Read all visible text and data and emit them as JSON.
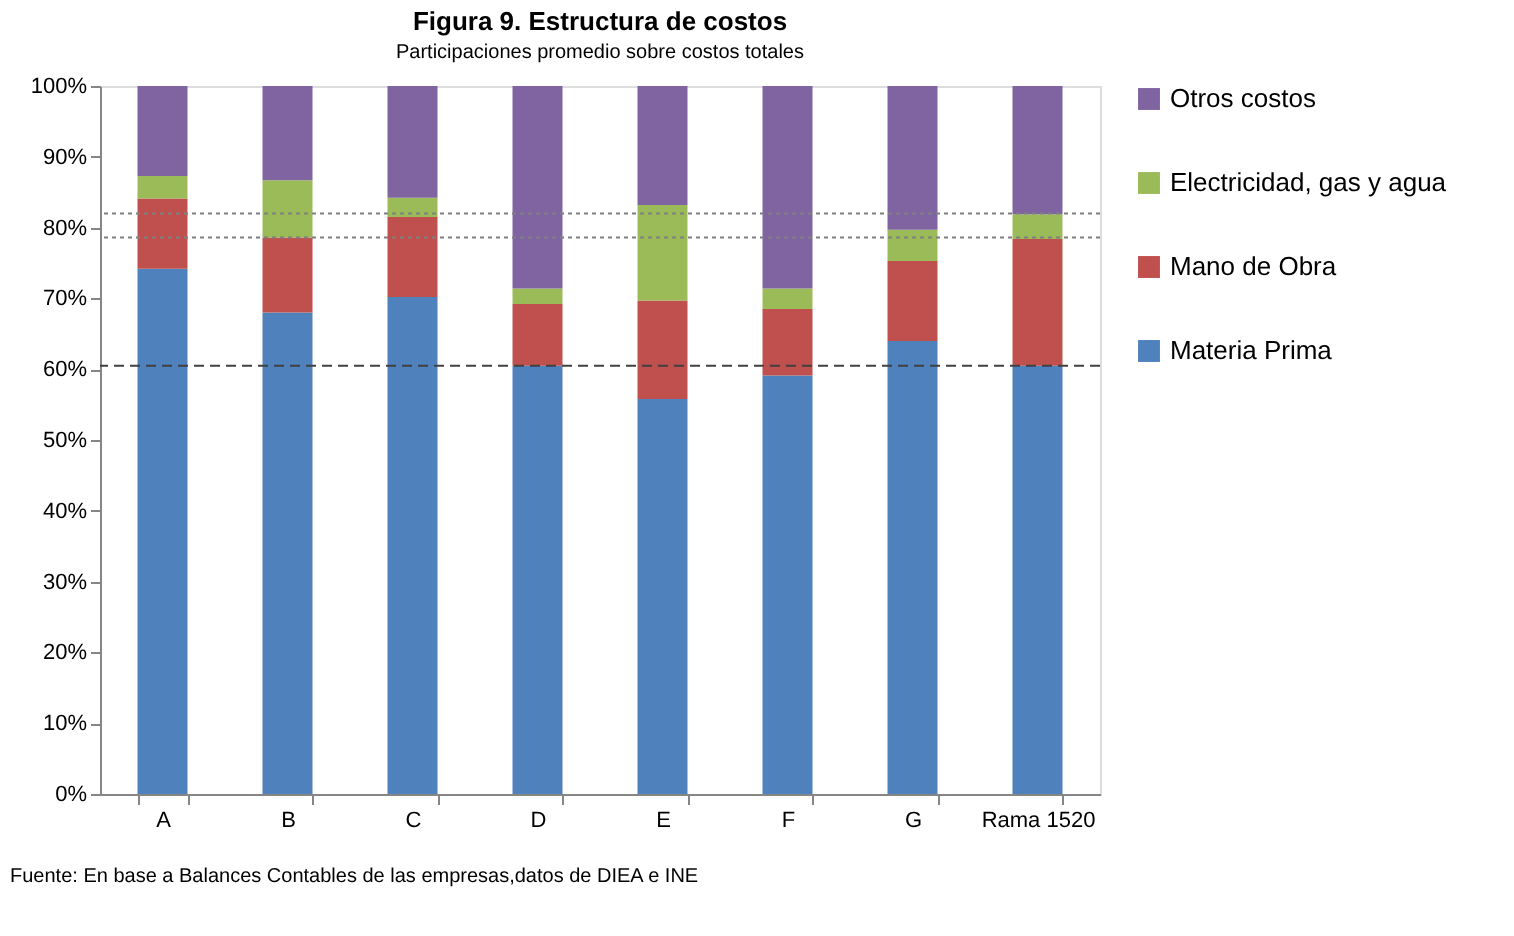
{
  "chart_data": {
    "type": "bar",
    "stacked": true,
    "title": "Figura 9. Estructura de costos",
    "subtitle": "Participaciones promedio sobre costos totales",
    "categories": [
      "A",
      "B",
      "C",
      "D",
      "E",
      "F",
      "G",
      "Rama 1520"
    ],
    "series": [
      {
        "name": "Materia Prima",
        "color": "#4f81bd",
        "values": [
          74.2,
          68.0,
          70.2,
          60.5,
          55.8,
          59.1,
          64.0,
          60.5
        ]
      },
      {
        "name": "Mano de Obra",
        "color": "#c0504d",
        "values": [
          9.9,
          10.6,
          11.3,
          8.7,
          13.9,
          9.4,
          11.3,
          17.9
        ]
      },
      {
        "name": "Electricidad, gas y agua",
        "color": "#9bbb59",
        "values": [
          3.2,
          8.1,
          2.7,
          2.2,
          13.5,
          2.9,
          4.4,
          3.5
        ]
      },
      {
        "name": "Otros costos",
        "color": "#8064a2",
        "values": [
          12.7,
          13.3,
          15.8,
          28.6,
          16.8,
          28.6,
          20.3,
          18.1
        ]
      }
    ],
    "ylim": [
      0,
      100
    ],
    "yticks": [
      {
        "value": 0,
        "label": "0%"
      },
      {
        "value": 10,
        "label": "10%"
      },
      {
        "value": 20,
        "label": "20%"
      },
      {
        "value": 30,
        "label": "30%"
      },
      {
        "value": 40,
        "label": "40%"
      },
      {
        "value": 50,
        "label": "50%"
      },
      {
        "value": 60,
        "label": "60%"
      },
      {
        "value": 70,
        "label": "70%"
      },
      {
        "value": 80,
        "label": "80%"
      },
      {
        "value": 90,
        "label": "90%"
      },
      {
        "value": 100,
        "label": "100%"
      }
    ],
    "ref_lines": [
      {
        "axis": "y",
        "value": 82,
        "color": "#7f7f7f",
        "line_style": "dotted"
      },
      {
        "axis": "y",
        "value": 78.6,
        "color": "#7f7f7f",
        "line_style": "dotted"
      },
      {
        "axis": "y",
        "value": 60.5,
        "color": "#404040",
        "line_style": "dashed"
      }
    ],
    "legend": "right",
    "grid": false,
    "annotations": [
      "Fuente: En base a Balances Contables de las empresas,datos de DIEA e INE"
    ]
  }
}
